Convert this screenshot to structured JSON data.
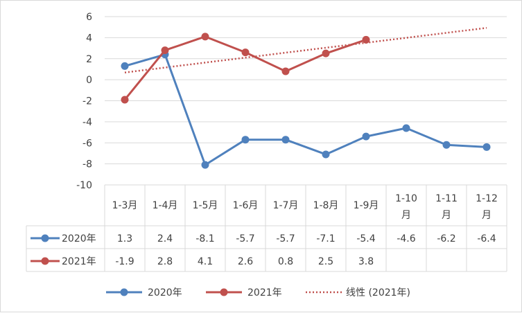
{
  "chart_data": {
    "type": "line",
    "categories": [
      "1-3月",
      "1-4月",
      "1-5月",
      "1-6月",
      "1-7月",
      "1-8月",
      "1-9月",
      "1-10月",
      "1-11月",
      "1-12月"
    ],
    "category_lines": [
      [
        "1-3月"
      ],
      [
        "1-4月"
      ],
      [
        "1-5月"
      ],
      [
        "1-6月"
      ],
      [
        "1-7月"
      ],
      [
        "1-8月"
      ],
      [
        "1-9月"
      ],
      [
        "1-10",
        "月"
      ],
      [
        "1-11",
        "月"
      ],
      [
        "1-12",
        "月"
      ]
    ],
    "series": [
      {
        "name": "2020年",
        "color": "#4f81bd",
        "values": [
          1.3,
          2.4,
          -8.1,
          -5.7,
          -5.7,
          -7.1,
          -5.4,
          -4.6,
          -6.2,
          -6.4
        ],
        "labels": [
          "1.3",
          "2.4",
          "-8.1",
          "-5.7",
          "-5.7",
          "-7.1",
          "-5.4",
          "-4.6",
          "-6.2",
          "-6.4"
        ]
      },
      {
        "name": "2021年",
        "color": "#c0504d",
        "values": [
          -1.9,
          2.8,
          4.1,
          2.6,
          0.8,
          2.5,
          3.8,
          null,
          null,
          null
        ],
        "labels": [
          "-1.9",
          "2.8",
          "4.1",
          "2.6",
          "0.8",
          "2.5",
          "3.8",
          "",
          "",
          ""
        ]
      }
    ],
    "trendline": {
      "name": "线性 (2021年)",
      "of_series": "2021年",
      "type": "linear",
      "color": "#c0504d"
    },
    "ylim": [
      -10,
      6
    ],
    "yticks": [
      -10,
      -8,
      -6,
      -4,
      -2,
      0,
      2,
      4,
      6
    ],
    "ytick_labels": [
      "-10",
      "-8",
      "-6",
      "-4",
      "-2",
      "0",
      "2",
      "4",
      "6"
    ],
    "grid": true,
    "data_table": true,
    "legend_position": "bottom",
    "title": "",
    "xlabel": "",
    "ylabel": ""
  }
}
